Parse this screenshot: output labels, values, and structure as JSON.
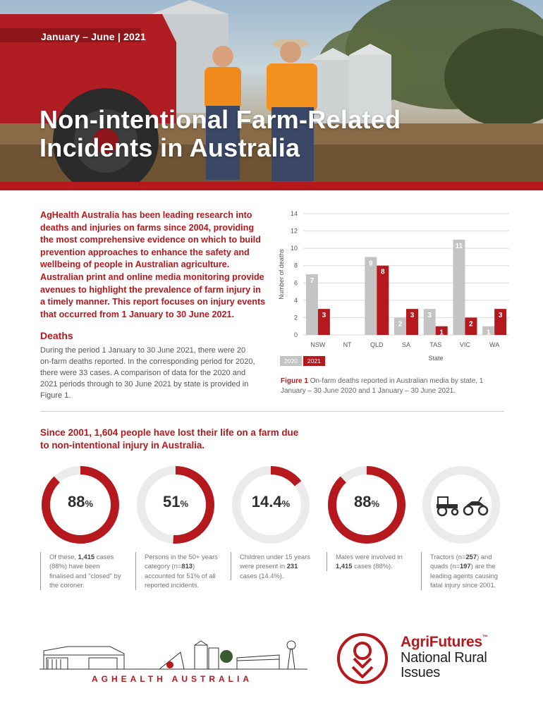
{
  "header": {
    "date_range": "January – June | 2021",
    "title": "Non-intentional Farm-Related Incidents in Australia"
  },
  "intro": {
    "lead": "AgHealth Australia has been leading research into deaths and injuries on farms since 2004, providing the most comprehensive evidence on which to build prevention approaches to enhance the safety and wellbeing of people in Australian agriculture. Australian print and online media monitoring provide avenues to highlight the prevalence of farm injury in a timely manner. This report focuses on injury events that occurred from 1 January to 30 June 2021.",
    "deaths_heading": "Deaths",
    "deaths_body": "During the period 1 January to 30 June 2021, there were 20 on-farm deaths reported. In the corresponding period for 2020, there were 33 cases. A comparison of data for the 2020 and 2021 periods through to 30 June 2021 by state is provided in Figure 1."
  },
  "chart_data": {
    "type": "bar",
    "categories": [
      "NSW",
      "NT",
      "QLD",
      "SA",
      "TAS",
      "VIC",
      "WA"
    ],
    "series": [
      {
        "name": "2020",
        "values": [
          7,
          0,
          9,
          2,
          3,
          11,
          1
        ],
        "color": "#c4c4c4"
      },
      {
        "name": "2021",
        "values": [
          3,
          0,
          8,
          3,
          1,
          2,
          3
        ],
        "color": "#b5191d"
      }
    ],
    "ylabel": "Number of deaths",
    "xlabel": "State",
    "ylim": [
      0,
      14
    ],
    "yticks": [
      "0",
      "2",
      "4",
      "6",
      "8",
      "10",
      "12",
      "14"
    ],
    "grid": true,
    "legend": "bottom-left"
  },
  "figure": {
    "label": "Figure 1",
    "caption": "On-farm deaths reported in Australian media by state, 1 January – 30 June 2020 and 1 January – 30 June 2021."
  },
  "stats": {
    "heading": "Since 2001, 1,604 people have lost their life on a farm due to non-intentional injury in Australia.",
    "items": [
      {
        "value": "88",
        "symbol": "%",
        "fraction": 0.88,
        "desc_pre": "Of these, ",
        "desc_bold": "1,415",
        "desc_post": " cases (88%) have been finalised and \"closed\" by the coroner."
      },
      {
        "value": "51",
        "symbol": "%",
        "fraction": 0.51,
        "desc_pre": "Persons in the 50+ years category (n=",
        "desc_bold": "813",
        "desc_post": ") accounted for 51% of all reported incidents."
      },
      {
        "value": "14.4",
        "symbol": "%",
        "fraction": 0.144,
        "desc_pre": "Children under 15 years were present in ",
        "desc_bold": "231",
        "desc_post": " cases (14.4%)."
      },
      {
        "value": "88",
        "symbol": "%",
        "fraction": 0.88,
        "desc_pre": "Males were involved in ",
        "desc_bold": "1,415",
        "desc_post": " cases (88%)."
      },
      {
        "icons": [
          "tractor-icon",
          "quad-bike-icon"
        ],
        "desc_pre": "Tractors (n=",
        "desc_bold": "257",
        "desc_mid": ") and quads (n=",
        "desc_bold2": "197",
        "desc_post": ") are the leading agents causing fatal injury since 2001."
      }
    ]
  },
  "footer": {
    "aghealth": "AGHEALTH AUSTRALIA",
    "agrifutures_brand": "AgriFutures",
    "agrifutures_tm": "™",
    "agrifutures_line2": "National Rural",
    "agrifutures_line3": "Issues"
  },
  "colors": {
    "brand_red": "#b5191d",
    "bar_2020": "#c4c4c4",
    "ring_track": "#ebebeb"
  }
}
